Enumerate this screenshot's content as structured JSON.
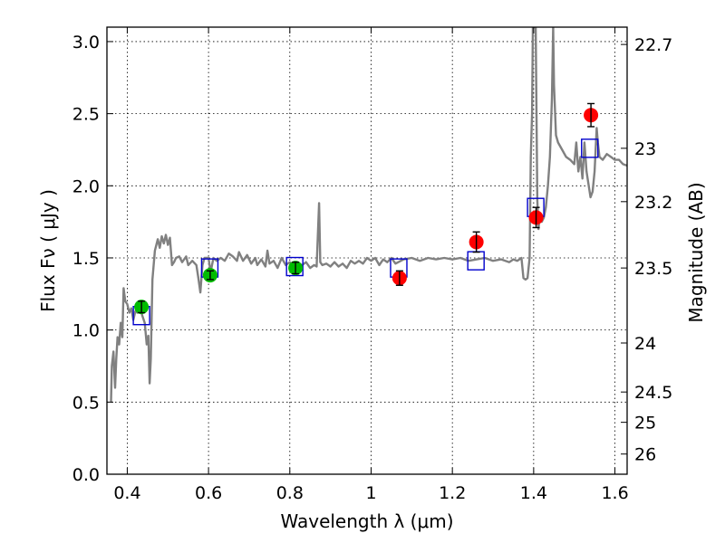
{
  "chart_data": {
    "type": "scatter",
    "xlabel": "Wavelength  λ (μm)",
    "ylabel": "Flux  Fν  ( μJy )",
    "y2label": "Magnitude (AB)",
    "xlim": [
      0.35,
      1.63
    ],
    "ylim": [
      0.0,
      3.1
    ],
    "grid": true,
    "x_ticks": [
      {
        "value": 0.4,
        "label": "0.4"
      },
      {
        "value": 0.6,
        "label": "0.6"
      },
      {
        "value": 0.8,
        "label": "0.8"
      },
      {
        "value": 1.0,
        "label": "1"
      },
      {
        "value": 1.2,
        "label": "1.2"
      },
      {
        "value": 1.4,
        "label": "1.4"
      },
      {
        "value": 1.6,
        "label": "1.6"
      }
    ],
    "y_ticks": [
      {
        "value": 0.0,
        "label": "0.0"
      },
      {
        "value": 0.5,
        "label": "0.5"
      },
      {
        "value": 1.0,
        "label": "1.0"
      },
      {
        "value": 1.5,
        "label": "1.5"
      },
      {
        "value": 2.0,
        "label": "2.0"
      },
      {
        "value": 2.5,
        "label": "2.5"
      },
      {
        "value": 3.0,
        "label": "3.0"
      }
    ],
    "y2_ticks": [
      {
        "flux": 2.98,
        "label": "22.7"
      },
      {
        "flux": 2.26,
        "label": "23"
      },
      {
        "flux": 1.89,
        "label": "23.2"
      },
      {
        "flux": 1.43,
        "label": "23.5"
      },
      {
        "flux": 0.91,
        "label": "24"
      },
      {
        "flux": 0.57,
        "label": "24.5"
      },
      {
        "flux": 0.36,
        "label": "25"
      },
      {
        "flux": 0.14,
        "label": "26"
      }
    ],
    "series": [
      {
        "kind": "spectrum",
        "color": "#808080",
        "points": [
          [
            0.36,
            0.5
          ],
          [
            0.362,
            0.75
          ],
          [
            0.366,
            0.85
          ],
          [
            0.37,
            0.6
          ],
          [
            0.373,
            0.8
          ],
          [
            0.376,
            0.95
          ],
          [
            0.38,
            0.9
          ],
          [
            0.384,
            1.05
          ],
          [
            0.388,
            0.95
          ],
          [
            0.391,
            1.29
          ],
          [
            0.395,
            1.2
          ],
          [
            0.4,
            1.18
          ],
          [
            0.405,
            1.12
          ],
          [
            0.41,
            1.15
          ],
          [
            0.415,
            1.07
          ],
          [
            0.42,
            1.13
          ],
          [
            0.425,
            1.12
          ],
          [
            0.43,
            1.17
          ],
          [
            0.437,
            1.1
          ],
          [
            0.443,
            1.05
          ],
          [
            0.448,
            0.9
          ],
          [
            0.452,
            0.96
          ],
          [
            0.455,
            0.63
          ],
          [
            0.458,
            0.8
          ],
          [
            0.462,
            1.35
          ],
          [
            0.468,
            1.55
          ],
          [
            0.475,
            1.63
          ],
          [
            0.48,
            1.57
          ],
          [
            0.485,
            1.65
          ],
          [
            0.49,
            1.6
          ],
          [
            0.495,
            1.66
          ],
          [
            0.5,
            1.59
          ],
          [
            0.505,
            1.64
          ],
          [
            0.51,
            1.45
          ],
          [
            0.515,
            1.47
          ],
          [
            0.52,
            1.5
          ],
          [
            0.528,
            1.51
          ],
          [
            0.535,
            1.47
          ],
          [
            0.545,
            1.51
          ],
          [
            0.55,
            1.45
          ],
          [
            0.56,
            1.48
          ],
          [
            0.57,
            1.45
          ],
          [
            0.575,
            1.36
          ],
          [
            0.58,
            1.26
          ],
          [
            0.585,
            1.45
          ],
          [
            0.59,
            1.5
          ],
          [
            0.6,
            1.5
          ],
          [
            0.605,
            1.4
          ],
          [
            0.612,
            1.5
          ],
          [
            0.62,
            1.48
          ],
          [
            0.63,
            1.5
          ],
          [
            0.64,
            1.48
          ],
          [
            0.65,
            1.53
          ],
          [
            0.66,
            1.51
          ],
          [
            0.67,
            1.48
          ],
          [
            0.675,
            1.54
          ],
          [
            0.685,
            1.48
          ],
          [
            0.695,
            1.52
          ],
          [
            0.705,
            1.46
          ],
          [
            0.715,
            1.5
          ],
          [
            0.72,
            1.45
          ],
          [
            0.73,
            1.49
          ],
          [
            0.74,
            1.44
          ],
          [
            0.745,
            1.55
          ],
          [
            0.75,
            1.46
          ],
          [
            0.76,
            1.48
          ],
          [
            0.77,
            1.43
          ],
          [
            0.78,
            1.5
          ],
          [
            0.79,
            1.45
          ],
          [
            0.8,
            1.47
          ],
          [
            0.81,
            1.44
          ],
          [
            0.82,
            1.46
          ],
          [
            0.83,
            1.45
          ],
          [
            0.84,
            1.47
          ],
          [
            0.85,
            1.43
          ],
          [
            0.86,
            1.45
          ],
          [
            0.866,
            1.44
          ],
          [
            0.872,
            1.88
          ],
          [
            0.875,
            1.47
          ],
          [
            0.88,
            1.45
          ],
          [
            0.89,
            1.46
          ],
          [
            0.9,
            1.44
          ],
          [
            0.91,
            1.47
          ],
          [
            0.92,
            1.44
          ],
          [
            0.93,
            1.46
          ],
          [
            0.94,
            1.43
          ],
          [
            0.95,
            1.48
          ],
          [
            0.96,
            1.46
          ],
          [
            0.97,
            1.48
          ],
          [
            0.98,
            1.46
          ],
          [
            0.99,
            1.5
          ],
          [
            1.0,
            1.48
          ],
          [
            1.01,
            1.5
          ],
          [
            1.02,
            1.45
          ],
          [
            1.03,
            1.49
          ],
          [
            1.04,
            1.47
          ],
          [
            1.05,
            1.5
          ],
          [
            1.06,
            1.46
          ],
          [
            1.08,
            1.49
          ],
          [
            1.1,
            1.5
          ],
          [
            1.12,
            1.48
          ],
          [
            1.14,
            1.5
          ],
          [
            1.16,
            1.49
          ],
          [
            1.18,
            1.5
          ],
          [
            1.2,
            1.49
          ],
          [
            1.22,
            1.5
          ],
          [
            1.24,
            1.48
          ],
          [
            1.26,
            1.49
          ],
          [
            1.28,
            1.5
          ],
          [
            1.3,
            1.48
          ],
          [
            1.32,
            1.49
          ],
          [
            1.34,
            1.47
          ],
          [
            1.35,
            1.49
          ],
          [
            1.36,
            1.48
          ],
          [
            1.37,
            1.5
          ],
          [
            1.375,
            1.36
          ],
          [
            1.38,
            1.35
          ],
          [
            1.385,
            1.36
          ],
          [
            1.39,
            1.5
          ],
          [
            1.393,
            2.2
          ],
          [
            1.396,
            2.5
          ],
          [
            1.398,
            3.1
          ],
          [
            1.405,
            3.1
          ],
          [
            1.409,
            1.9
          ],
          [
            1.412,
            1.7
          ],
          [
            1.415,
            1.8
          ],
          [
            1.42,
            1.75
          ],
          [
            1.425,
            1.78
          ],
          [
            1.43,
            1.85
          ],
          [
            1.435,
            2.0
          ],
          [
            1.44,
            2.2
          ],
          [
            1.445,
            2.6
          ],
          [
            1.448,
            3.1
          ],
          [
            1.45,
            2.7
          ],
          [
            1.455,
            2.35
          ],
          [
            1.46,
            2.3
          ],
          [
            1.47,
            2.25
          ],
          [
            1.48,
            2.2
          ],
          [
            1.49,
            2.18
          ],
          [
            1.5,
            2.15
          ],
          [
            1.505,
            2.3
          ],
          [
            1.51,
            2.1
          ],
          [
            1.515,
            2.2
          ],
          [
            1.52,
            2.05
          ],
          [
            1.525,
            2.3
          ],
          [
            1.53,
            2.1
          ],
          [
            1.54,
            1.92
          ],
          [
            1.545,
            1.96
          ],
          [
            1.55,
            2.1
          ],
          [
            1.555,
            2.4
          ],
          [
            1.558,
            2.3
          ],
          [
            1.562,
            2.2
          ],
          [
            1.57,
            2.18
          ],
          [
            1.58,
            2.22
          ],
          [
            1.59,
            2.2
          ],
          [
            1.6,
            2.18
          ],
          [
            1.61,
            2.18
          ],
          [
            1.62,
            2.15
          ],
          [
            1.63,
            2.14
          ]
        ]
      },
      {
        "kind": "model-squares",
        "color": "#0000cc",
        "points": [
          [
            0.435,
            1.1
          ],
          [
            0.603,
            1.43
          ],
          [
            0.812,
            1.44
          ],
          [
            1.068,
            1.43
          ],
          [
            1.258,
            1.48
          ],
          [
            1.405,
            1.85
          ],
          [
            1.538,
            2.26
          ]
        ]
      },
      {
        "kind": "observed-green",
        "color": "#00bb00",
        "points": [
          [
            0.435,
            1.16,
            0.04
          ],
          [
            0.604,
            1.38,
            0.03
          ],
          [
            0.814,
            1.43,
            0.04
          ]
        ]
      },
      {
        "kind": "observed-red",
        "color": "#ff0000",
        "points": [
          [
            1.07,
            1.36,
            0.05
          ],
          [
            1.259,
            1.61,
            0.07
          ],
          [
            1.406,
            1.78,
            0.07
          ],
          [
            1.541,
            2.49,
            0.08
          ]
        ]
      }
    ]
  }
}
